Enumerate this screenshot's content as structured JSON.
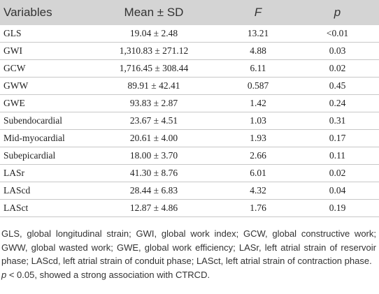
{
  "table": {
    "header": [
      {
        "text": "Variables",
        "italic": false
      },
      {
        "text": "Mean ± SD",
        "italic": false
      },
      {
        "text": "F",
        "italic": true
      },
      {
        "text": "p",
        "italic": true
      }
    ],
    "rows": [
      [
        "GLS",
        "19.04 ± 2.48",
        "13.21",
        "<0.01"
      ],
      [
        "GWI",
        "1,310.83 ± 271.12",
        "4.88",
        "0.03"
      ],
      [
        "GCW",
        "1,716.45 ± 308.44",
        "6.11",
        "0.02"
      ],
      [
        "GWW",
        "89.91 ± 42.41",
        "0.587",
        "0.45"
      ],
      [
        "GWE",
        "93.83 ± 2.87",
        "1.42",
        "0.24"
      ],
      [
        "Subendocardial",
        "23.67 ± 4.51",
        "1.03",
        "0.31"
      ],
      [
        "Mid-myocardial",
        "20.61 ± 4.00",
        "1.93",
        "0.17"
      ],
      [
        "Subepicardial",
        "18.00 ± 3.70",
        "2.66",
        "0.11"
      ],
      [
        "LASr",
        "41.30 ± 8.76",
        "6.01",
        "0.02"
      ],
      [
        "LAScd",
        "28.44 ± 6.83",
        "4.32",
        "0.04"
      ],
      [
        "LASct",
        "12.87 ± 4.86",
        "1.76",
        "0.19"
      ]
    ]
  },
  "notes": {
    "abbreviations": "GLS, global longitudinal strain; GWI, global work index; GCW, global constructive work; GWW, global wasted work; GWE, global work efficiency; LASr, left atrial strain of reservoir phase; LAScd, left atrial strain of conduit phase; LASct, left atrial strain of contraction phase.",
    "significance": {
      "symbol": "p",
      "text": " < 0.05, showed a strong association with CTRCD."
    }
  }
}
